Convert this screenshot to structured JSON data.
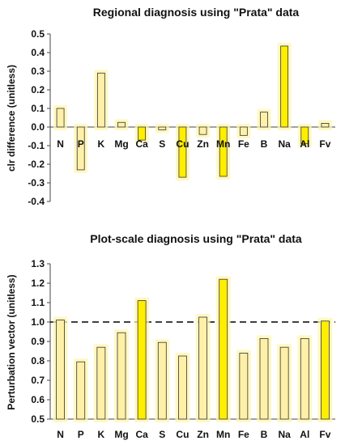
{
  "colors": {
    "pale_bar": "#fff0a8",
    "bright_bar": "#ffee00",
    "glow": "#fff6b0",
    "outline": "#333333",
    "reference": "#000000"
  },
  "chart_data": [
    {
      "type": "bar",
      "title": "Regional diagnosis using \"Prata\" data",
      "xlabel": "",
      "ylabel": "clr difference (unitless)",
      "ylim": [
        -0.4,
        0.5
      ],
      "yticks": [
        "0.5",
        "0.4",
        "0.3",
        "0.2",
        "0.1",
        "0.0",
        "-0.1",
        "-0.2",
        "-0.3",
        "-0.4"
      ],
      "grid": false,
      "legend": "none",
      "categories": [
        "N",
        "P",
        "K",
        "Mg",
        "Ca",
        "S",
        "Cu",
        "Zn",
        "Mn",
        "Fe",
        "B",
        "Na",
        "Al",
        "Fv"
      ],
      "values": [
        0.1,
        -0.23,
        0.29,
        0.025,
        -0.07,
        -0.015,
        -0.27,
        -0.04,
        -0.265,
        -0.045,
        0.08,
        0.435,
        -0.09,
        0.02
      ],
      "bar_style": [
        "pale",
        "pale",
        "pale",
        "pale",
        "bright",
        "pale",
        "bright",
        "pale",
        "bright",
        "pale",
        "pale",
        "bright",
        "bright",
        "pale"
      ]
    },
    {
      "type": "bar",
      "title": "Plot-scale diagnosis using \"Prata\" data",
      "xlabel": "",
      "ylabel": "Perturbation vector (unitless)",
      "ylim": [
        0.5,
        1.3
      ],
      "yticks": [
        "1.3",
        "1.2",
        "1.1",
        "1.0",
        "0.9",
        "0.8",
        "0.7",
        "0.6",
        "0.5"
      ],
      "grid": false,
      "legend": "none",
      "reference_line": {
        "y": 1.0,
        "style": "dashed"
      },
      "categories": [
        "N",
        "P",
        "K",
        "Mg",
        "Ca",
        "S",
        "Cu",
        "Zn",
        "Mn",
        "Fe",
        "B",
        "Na",
        "Al",
        "Fv"
      ],
      "values": [
        1.01,
        0.795,
        0.87,
        0.945,
        1.11,
        0.895,
        0.825,
        1.025,
        1.22,
        0.84,
        0.915,
        0.87,
        0.915,
        1.005
      ],
      "bar_style": [
        "pale",
        "pale",
        "pale",
        "pale",
        "bright",
        "pale",
        "pale",
        "pale",
        "bright",
        "pale",
        "pale",
        "pale",
        "pale",
        "bright"
      ]
    }
  ]
}
